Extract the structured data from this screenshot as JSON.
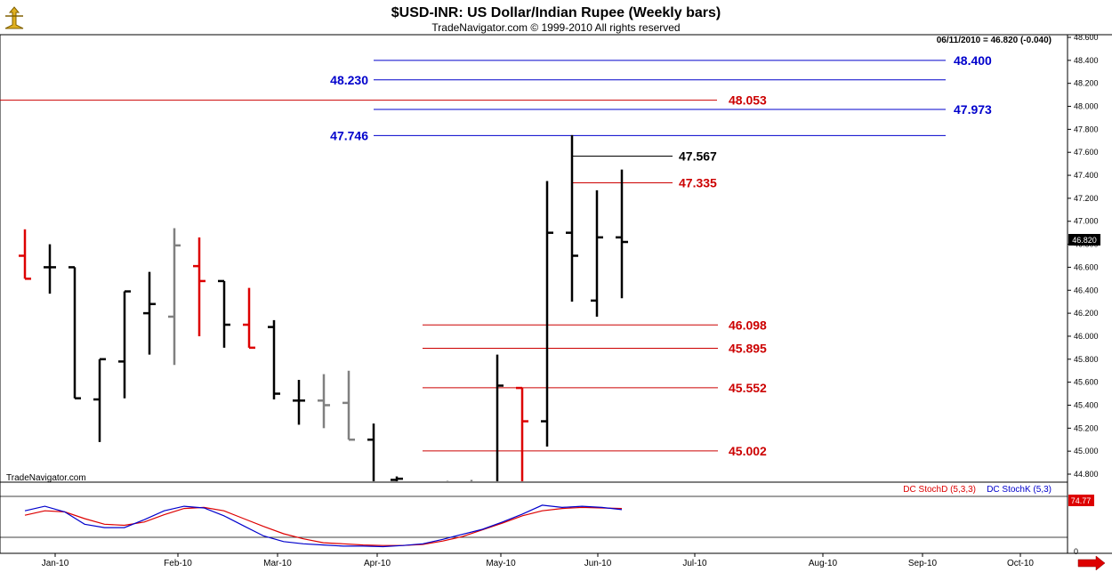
{
  "header": {
    "title": "$USD-INR:  US Dollar/Indian Rupee  (Weekly bars)",
    "subtitle": "TradeNavigator.com © 1999-2010 All rights reserved",
    "readout": "06/11/2010 = 46.820 (-0.040)",
    "watermark": "TradeNavigator.com"
  },
  "chart_data": {
    "type": "ohlc",
    "y_range": [
      44.72,
      48.72
    ],
    "y_ticks": [
      "48.600",
      "48.400",
      "48.200",
      "48.000",
      "47.800",
      "47.600",
      "47.400",
      "47.200",
      "47.000",
      "46.800",
      "46.600",
      "46.400",
      "46.200",
      "46.000",
      "45.800",
      "45.600",
      "45.400",
      "45.200",
      "45.000",
      "44.800"
    ],
    "last_price_label": "46.820",
    "x_ticks": [
      "Jan-10",
      "Feb-10",
      "Mar-10",
      "Apr-10",
      "May-10",
      "Jun-10",
      "Jul-10",
      "Aug-10",
      "Sep-10",
      "Oct-10"
    ],
    "bars": [
      {
        "o": 46.7,
        "h": 46.93,
        "l": 46.5,
        "c": 46.5,
        "color": "#dd0000"
      },
      {
        "o": 46.6,
        "h": 46.8,
        "l": 46.37,
        "c": 46.6,
        "color": "#000000"
      },
      {
        "o": 46.6,
        "h": 46.6,
        "l": 45.46,
        "c": 45.46,
        "color": "#000000"
      },
      {
        "o": 45.45,
        "h": 45.8,
        "l": 45.08,
        "c": 45.8,
        "color": "#000000"
      },
      {
        "o": 45.78,
        "h": 46.39,
        "l": 45.46,
        "c": 46.39,
        "color": "#000000"
      },
      {
        "o": 46.2,
        "h": 46.56,
        "l": 45.84,
        "c": 46.28,
        "color": "#000000"
      },
      {
        "o": 46.17,
        "h": 46.94,
        "l": 45.75,
        "c": 46.79,
        "color": "#808080"
      },
      {
        "o": 46.61,
        "h": 46.86,
        "l": 46.0,
        "c": 46.48,
        "color": "#dd0000"
      },
      {
        "o": 46.48,
        "h": 46.48,
        "l": 45.9,
        "c": 46.1,
        "color": "#000000"
      },
      {
        "o": 46.1,
        "h": 46.42,
        "l": 45.9,
        "c": 45.9,
        "color": "#dd0000"
      },
      {
        "o": 46.08,
        "h": 46.14,
        "l": 45.45,
        "c": 45.5,
        "color": "#000000"
      },
      {
        "o": 45.44,
        "h": 45.62,
        "l": 45.23,
        "c": 45.44,
        "color": "#000000"
      },
      {
        "o": 45.44,
        "h": 45.67,
        "l": 45.2,
        "c": 45.4,
        "color": "#808080"
      },
      {
        "o": 45.42,
        "h": 45.7,
        "l": 45.1,
        "c": 45.1,
        "color": "#808080"
      },
      {
        "o": 45.1,
        "h": 45.24,
        "l": 44.72,
        "c": 44.72,
        "color": "#000000"
      },
      {
        "o": 44.75,
        "h": 44.78,
        "l": 44.72,
        "c": 44.76,
        "color": "#000000"
      },
      {
        "o": 44.73,
        "h": 44.74,
        "l": 44.72,
        "c": 44.73,
        "color": "#000000"
      },
      {
        "o": 44.72,
        "h": 44.75,
        "l": 44.72,
        "c": 44.73,
        "color": "#808080"
      },
      {
        "o": 44.72,
        "h": 45.84,
        "l": 44.72,
        "c": 45.57,
        "color": "#000000"
      },
      {
        "o": 45.55,
        "h": 45.55,
        "l": 44.72,
        "c": 45.26,
        "color": "#dd0000"
      },
      {
        "o": 45.26,
        "h": 47.35,
        "l": 45.04,
        "c": 46.9,
        "color": "#000000"
      },
      {
        "o": 46.9,
        "h": 47.75,
        "l": 46.3,
        "c": 46.7,
        "color": "#000000"
      },
      {
        "o": 46.31,
        "h": 47.27,
        "l": 46.17,
        "c": 46.86,
        "color": "#000000"
      },
      {
        "o": 46.86,
        "h": 47.45,
        "l": 46.33,
        "c": 46.82,
        "color": "#000000"
      }
    ],
    "levels": [
      {
        "label": "48.400",
        "value": 48.4,
        "color": "#0000cc",
        "label_side": "right"
      },
      {
        "label": "48.230",
        "value": 48.23,
        "color": "#0000cc",
        "label_side": "left"
      },
      {
        "label": "48.053",
        "value": 48.053,
        "color": "#cc0000",
        "label_side": "right"
      },
      {
        "label": "47.973",
        "value": 47.973,
        "color": "#0000cc",
        "label_side": "right"
      },
      {
        "label": "47.746",
        "value": 47.746,
        "color": "#0000cc",
        "label_side": "left"
      },
      {
        "label": "47.567",
        "value": 47.567,
        "color": "#000000",
        "label_side": "right"
      },
      {
        "label": "47.335",
        "value": 47.335,
        "color": "#cc0000",
        "label_side": "right"
      },
      {
        "label": "46.098",
        "value": 46.098,
        "color": "#cc0000",
        "label_side": "right"
      },
      {
        "label": "45.895",
        "value": 45.895,
        "color": "#cc0000",
        "label_side": "right"
      },
      {
        "label": "45.552",
        "value": 45.552,
        "color": "#cc0000",
        "label_side": "right"
      },
      {
        "label": "45.002",
        "value": 45.002,
        "color": "#cc0000",
        "label_side": "right"
      }
    ],
    "stochastic": {
      "range": [
        0,
        100
      ],
      "y_ticks": [
        "0"
      ],
      "last_value_label": "74.77",
      "legend": [
        {
          "name": "DC StochD (5,3,3)",
          "color": "#dd0000"
        },
        {
          "name": "DC StochK (5,3)",
          "color": "#0000cc"
        }
      ],
      "stoch_d": [
        60,
        68,
        66,
        54,
        44,
        42,
        48,
        61,
        72,
        74,
        68,
        54,
        40,
        27,
        18,
        11,
        9,
        7,
        6,
        6,
        8,
        14,
        22,
        34,
        46,
        59,
        68,
        72,
        74,
        73,
        72
      ],
      "stoch_k": [
        68,
        76,
        66,
        44,
        38,
        38,
        52,
        68,
        76,
        73,
        59,
        41,
        23,
        13,
        9,
        7,
        5,
        5,
        4,
        6,
        9,
        17,
        26,
        35,
        48,
        62,
        78,
        74,
        76,
        74,
        70
      ]
    }
  },
  "nav": {
    "right_arrow_icon": "arrow-right-icon"
  }
}
